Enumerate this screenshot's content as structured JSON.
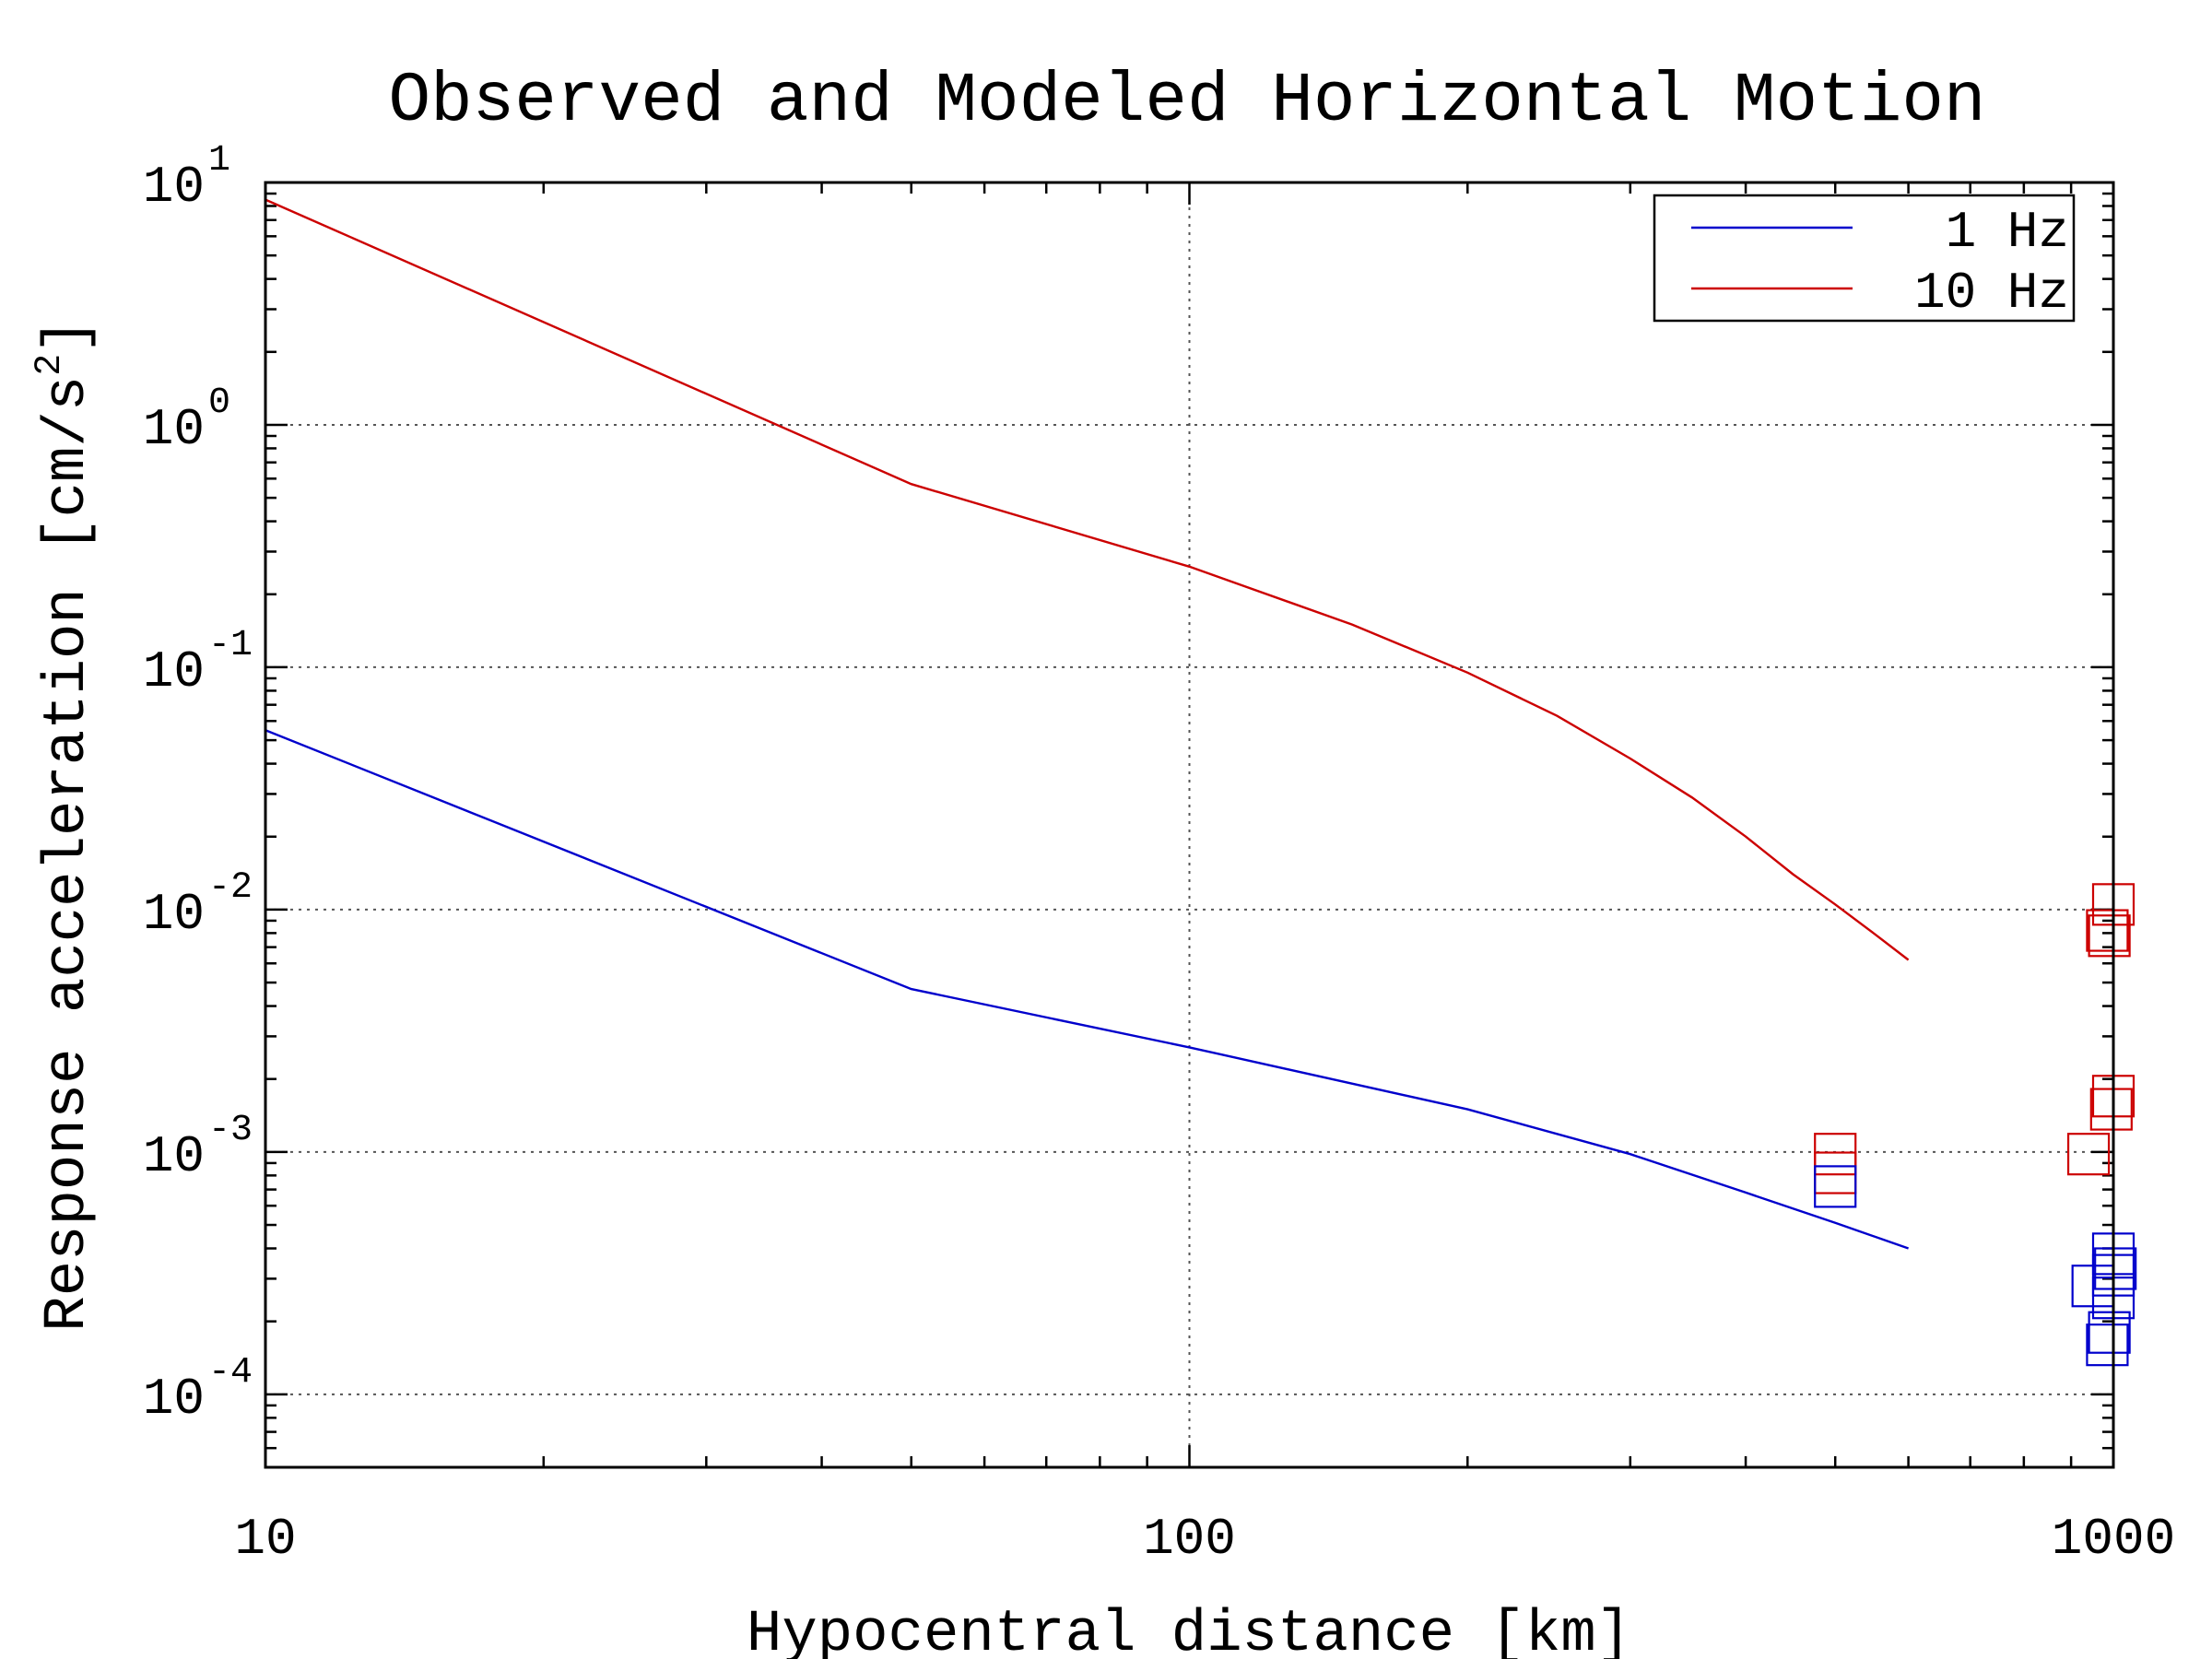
{
  "chart_data": {
    "type": "line",
    "title": "Observed and Modeled Horizontal Motion",
    "xlabel": "Hypocentral distance [km]",
    "ylabel_prefix": "Response acceleration [cm/s",
    "ylabel_exponent": "2",
    "ylabel_suffix": "]",
    "x_scale": "log",
    "y_scale": "log",
    "xlim": [
      10,
      1000
    ],
    "ylim": [
      5e-05,
      10
    ],
    "x_ticks": [
      {
        "value": 10,
        "label": "10"
      },
      {
        "value": 100,
        "label": "100"
      },
      {
        "value": 1000,
        "label": "1000"
      }
    ],
    "y_ticks": [
      {
        "value": 10,
        "base": "10",
        "exp": "1"
      },
      {
        "value": 1,
        "base": "10",
        "exp": "0"
      },
      {
        "value": 0.1,
        "base": "10",
        "exp": "-1"
      },
      {
        "value": 0.01,
        "base": "10",
        "exp": "-2"
      },
      {
        "value": 0.001,
        "base": "10",
        "exp": "-3"
      },
      {
        "value": 0.0001,
        "base": "10",
        "exp": "-4"
      }
    ],
    "grid": true,
    "legend_position": "top-right",
    "series": [
      {
        "name": "1 Hz",
        "color": "#0000cc",
        "x": [
          10,
          50,
          100,
          200,
          300,
          400,
          500,
          600
        ],
        "y": [
          0.055,
          0.0047,
          0.0027,
          0.0015,
          0.00098,
          0.00068,
          0.00051,
          0.0004
        ]
      },
      {
        "name": "10 Hz",
        "color": "#cc0000",
        "x": [
          10,
          50,
          100,
          150,
          200,
          250,
          300,
          350,
          400,
          450,
          500,
          550,
          600
        ],
        "y": [
          8.5,
          0.57,
          0.26,
          0.15,
          0.095,
          0.063,
          0.042,
          0.029,
          0.02,
          0.014,
          0.0105,
          0.008,
          0.0062
        ]
      }
    ],
    "observations": [
      {
        "series": "10 Hz",
        "x": 1000,
        "y": 0.0105
      },
      {
        "series": "10 Hz",
        "x": 985,
        "y": 0.0082
      },
      {
        "series": "10 Hz",
        "x": 990,
        "y": 0.0078
      },
      {
        "series": "10 Hz",
        "x": 1000,
        "y": 0.0017
      },
      {
        "series": "10 Hz",
        "x": 995,
        "y": 0.0015
      },
      {
        "series": "10 Hz",
        "x": 940,
        "y": 0.00098
      },
      {
        "series": "10 Hz",
        "x": 500,
        "y": 0.00098
      },
      {
        "series": "10 Hz",
        "x": 500,
        "y": 0.00082
      },
      {
        "series": "1 Hz",
        "x": 500,
        "y": 0.00072
      },
      {
        "series": "1 Hz",
        "x": 1000,
        "y": 0.00038
      },
      {
        "series": "1 Hz",
        "x": 1005,
        "y": 0.00033
      },
      {
        "series": "1 Hz",
        "x": 1000,
        "y": 0.00031
      },
      {
        "series": "1 Hz",
        "x": 950,
        "y": 0.00028
      },
      {
        "series": "1 Hz",
        "x": 1000,
        "y": 0.00025
      },
      {
        "series": "1 Hz",
        "x": 990,
        "y": 0.00018
      },
      {
        "series": "1 Hz",
        "x": 985,
        "y": 0.00016
      }
    ]
  }
}
